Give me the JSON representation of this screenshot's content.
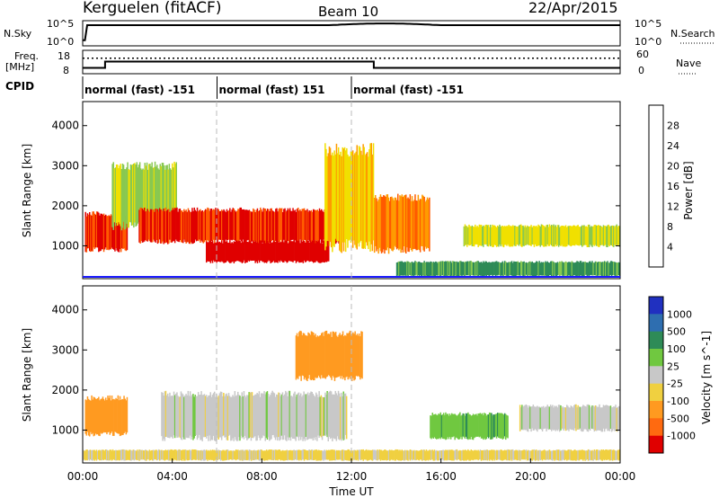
{
  "header": {
    "station": "Kerguelen (fitACF)",
    "beam": "Beam 10",
    "date": "22/Apr/2015"
  },
  "top_panels": {
    "nsky_label": "N.Sky",
    "nsearch_label": "N.Search",
    "nsky_ticks": [
      "10^5",
      "10^0"
    ],
    "nsearch_ticks": [
      "10^5",
      "10^0"
    ],
    "freq_label_1": "Freq.",
    "freq_label_2": "[MHz]",
    "freq_ticks": [
      "18",
      "8"
    ],
    "nave_label": "Nave",
    "nave_ticks": [
      "60",
      "0"
    ],
    "cpid_label": "CPID",
    "cpid_segments": [
      {
        "label": "normal (fast) -151",
        "start": "00:00",
        "end": "06:00"
      },
      {
        "label": "normal (fast) 151",
        "start": "06:00",
        "end": "12:00"
      },
      {
        "label": "normal (fast) -151",
        "start": "12:00",
        "end": "24:00"
      }
    ]
  },
  "axes": {
    "ylabel": "Slant Range [km]",
    "xlabel": "Time UT",
    "xticks": [
      "00:00",
      "04:00",
      "08:00",
      "12:00",
      "16:00",
      "20:00",
      "00:00"
    ],
    "yticks": [
      "1000",
      "2000",
      "3000",
      "4000"
    ]
  },
  "power_colorbar": {
    "label": "Power [dB]",
    "ticks": [
      "28",
      "24",
      "20",
      "16",
      "12",
      "8",
      "4"
    ],
    "colors": [
      "#1a1aff",
      "#2b4fb8",
      "#2e8b57",
      "#88c850",
      "#f0e000",
      "#ff9a00",
      "#ff5a00",
      "#e00000"
    ]
  },
  "velocity_colorbar": {
    "label": "Velocity [m s^-1]",
    "ticks": [
      "1000",
      "500",
      "100",
      "25",
      "-25",
      "-100",
      "-500",
      "-1000"
    ],
    "colors": [
      "#2030c0",
      "#2e6eb0",
      "#2e8b57",
      "#70c840",
      "#c8c8c8",
      "#f0d040",
      "#ff9a20",
      "#ff6a10",
      "#e00000"
    ]
  },
  "chart_data": {
    "type": "heatmap",
    "title": "Kerguelen (fitACF) Beam 10 22/Apr/2015",
    "xlabel": "Time UT",
    "ylabel": "Slant Range [km]",
    "xlim_hours": [
      0,
      24
    ],
    "ylim_km": [
      180,
      4600
    ],
    "nsky_ylim_log": [
      0,
      5
    ],
    "freq_ylim_mhz": [
      8,
      18
    ],
    "nave_ylim": [
      0,
      60
    ],
    "frequency_mhz": [
      {
        "start_h": 0.0,
        "end_h": 1.0,
        "value": 10.5
      },
      {
        "start_h": 1.0,
        "end_h": 13.0,
        "value": 13.2
      },
      {
        "start_h": 13.0,
        "end_h": 24.0,
        "value": 10.5
      }
    ],
    "nave": 40,
    "power_db_range": [
      0,
      30
    ],
    "velocity_ms_range": [
      -1000,
      1000
    ],
    "power_regions": [
      {
        "t0": 0.1,
        "t1": 2.0,
        "r0": 900,
        "r1": 1800,
        "db": 27
      },
      {
        "t0": 1.3,
        "t1": 4.2,
        "r0": 1500,
        "r1": 3000,
        "db": 14
      },
      {
        "t0": 2.5,
        "t1": 11.5,
        "r0": 1100,
        "r1": 1900,
        "db": 27
      },
      {
        "t0": 5.5,
        "t1": 11.0,
        "r0": 600,
        "r1": 1100,
        "db": 29
      },
      {
        "t0": 10.8,
        "t1": 13.0,
        "r0": 1000,
        "r1": 3400,
        "db": 18
      },
      {
        "t0": 13.0,
        "t1": 15.5,
        "r0": 900,
        "r1": 2200,
        "db": 22
      },
      {
        "t0": 14.0,
        "t1": 24.0,
        "r0": 250,
        "r1": 600,
        "db": 10
      },
      {
        "t0": 17.0,
        "t1": 24.0,
        "r0": 1000,
        "r1": 1500,
        "db": 16
      }
    ],
    "velocity_regions": [
      {
        "t0": 0.1,
        "t1": 2.0,
        "r0": 900,
        "r1": 1800,
        "v": -300
      },
      {
        "t0": 3.5,
        "t1": 11.8,
        "r0": 800,
        "r1": 1900,
        "v": 0
      },
      {
        "t0": 9.5,
        "t1": 12.5,
        "r0": 2300,
        "r1": 3400,
        "v": -200
      },
      {
        "t0": 15.5,
        "t1": 19.0,
        "r0": 800,
        "r1": 1400,
        "v": 80
      },
      {
        "t0": 19.5,
        "t1": 24.0,
        "r0": 1000,
        "r1": 1600,
        "v": 0
      },
      {
        "t0": 0.0,
        "t1": 24.0,
        "r0": 250,
        "r1": 500,
        "v": -40
      }
    ]
  }
}
